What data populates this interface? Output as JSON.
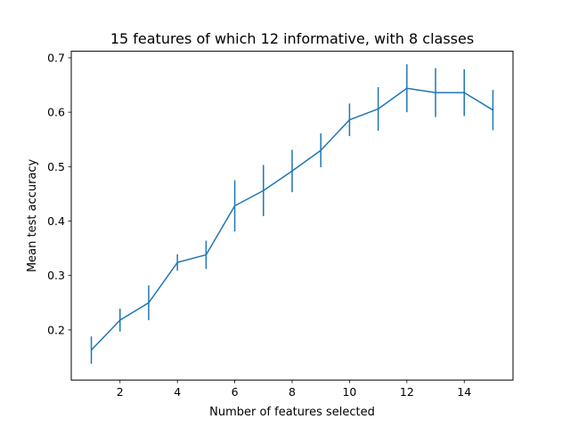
{
  "chart_data": {
    "type": "line",
    "title": "15 features of which 12 informative, with 8 classes",
    "xlabel": "Number of features selected",
    "ylabel": "Mean test accuracy",
    "xlim": [
      0.3,
      15.7
    ],
    "ylim": [
      0.108,
      0.712
    ],
    "x_ticks": [
      2,
      4,
      6,
      8,
      10,
      12,
      14
    ],
    "y_ticks": [
      0.2,
      0.3,
      0.4,
      0.5,
      0.6,
      0.7
    ],
    "x_tick_labels": [
      "2",
      "4",
      "6",
      "8",
      "10",
      "12",
      "14"
    ],
    "y_tick_labels": [
      "0.2",
      "0.3",
      "0.4",
      "0.5",
      "0.6",
      "0.7"
    ],
    "grid": false,
    "color": "#1f77b4",
    "series": [
      {
        "x": [
          1,
          2,
          3,
          4,
          5,
          6,
          7,
          8,
          9,
          10,
          11,
          12,
          13,
          14,
          15
        ],
        "y": [
          0.163,
          0.218,
          0.25,
          0.324,
          0.338,
          0.428,
          0.456,
          0.492,
          0.53,
          0.586,
          0.606,
          0.644,
          0.636,
          0.636,
          0.604
        ],
        "err": [
          0.025,
          0.021,
          0.032,
          0.015,
          0.026,
          0.047,
          0.047,
          0.039,
          0.031,
          0.03,
          0.04,
          0.044,
          0.045,
          0.043,
          0.037
        ]
      }
    ]
  }
}
